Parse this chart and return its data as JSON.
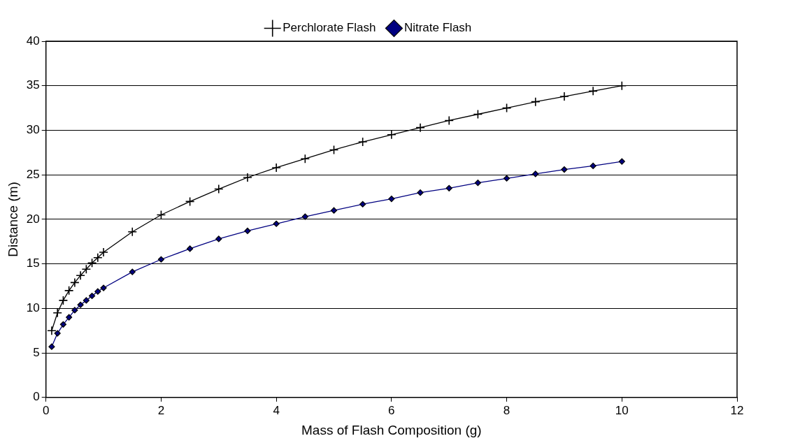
{
  "chart_data": {
    "type": "line",
    "xlabel": "Mass of Flash Composition (g)",
    "ylabel": "Distance (m)",
    "x": [
      0.1,
      0.2,
      0.3,
      0.4,
      0.5,
      0.6,
      0.7,
      0.8,
      0.9,
      1.0,
      1.5,
      2,
      2.5,
      3,
      3.5,
      4,
      4.5,
      5,
      5.5,
      6,
      6.5,
      7,
      7.5,
      8,
      8.5,
      9,
      9.5,
      10
    ],
    "series": [
      {
        "name": "Perchlorate Flash",
        "color": "#000000",
        "marker": "cross",
        "values": [
          7.5,
          9.5,
          10.9,
          12.0,
          12.9,
          13.7,
          14.4,
          15.1,
          15.7,
          16.3,
          18.6,
          20.5,
          22.0,
          23.4,
          24.7,
          25.8,
          26.8,
          27.8,
          28.7,
          29.5,
          30.3,
          31.1,
          31.8,
          32.5,
          33.2,
          33.8,
          34.4,
          35.0
        ]
      },
      {
        "name": "Nitrate Flash",
        "color": "#000080",
        "marker": "diamond",
        "values": [
          5.7,
          7.2,
          8.2,
          9.0,
          9.8,
          10.4,
          10.9,
          11.4,
          11.9,
          12.3,
          14.1,
          15.5,
          16.7,
          17.8,
          18.7,
          19.5,
          20.3,
          21.0,
          21.7,
          22.3,
          23.0,
          23.5,
          24.1,
          24.6,
          25.1,
          25.6,
          26.0,
          26.5
        ]
      }
    ],
    "xlim": [
      0,
      12
    ],
    "xticks": [
      0,
      2,
      4,
      6,
      8,
      10,
      12
    ],
    "ylim": [
      0,
      40
    ],
    "yticks": [
      0,
      5,
      10,
      15,
      20,
      25,
      30,
      35,
      40
    ],
    "grid": "y",
    "legend": "top",
    "line_style": "solid"
  }
}
